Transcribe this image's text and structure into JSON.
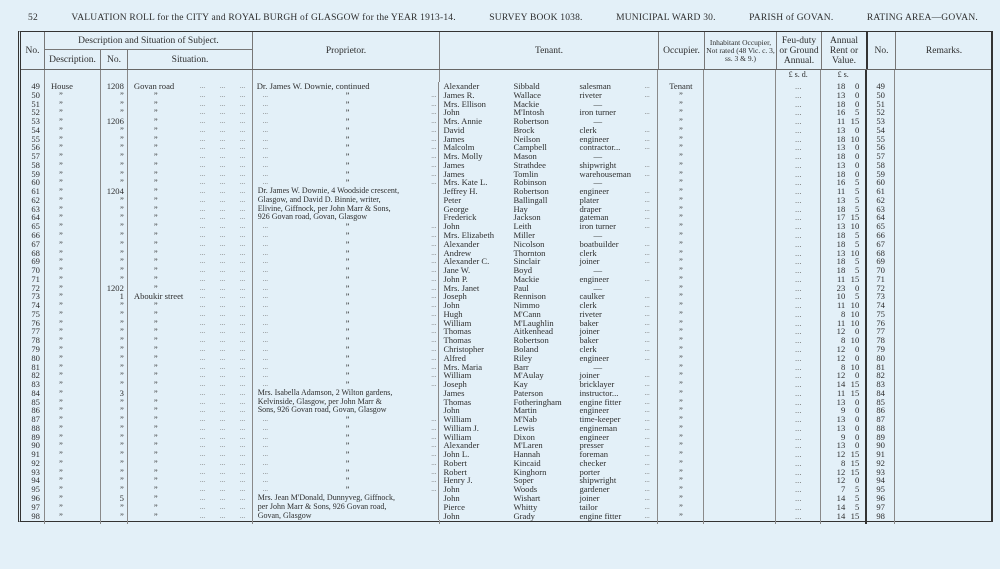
{
  "header": {
    "page_number": "52",
    "title": "VALUATION ROLL for the CITY and ROYAL BURGH of GLASGOW for the YEAR 1913-14.",
    "survey_book": "SURVEY BOOK 1038.",
    "ward": "MUNICIPAL WARD 30.",
    "parish": "PARISH of GOVAN.",
    "rating_area": "RATING AREA—GOVAN."
  },
  "columns": {
    "no": "No.",
    "desc_group": "Description and Situation of Subject.",
    "description": "Description.",
    "number": "No.",
    "situation": "Situation.",
    "proprietor": "Proprietor.",
    "tenant": "Tenant.",
    "occupier": "Occupier.",
    "inhabitant": "Inhabitant Occupier, Not rated (48 Vic. c. 3, ss. 3 & 9.)",
    "feu": "Feu-duty or Ground Annual.",
    "rent": "Annual Rent or Value.",
    "no2": "No.",
    "remarks": "Remarks.",
    "feu_units": "£  s.  d.",
    "rent_units": "£    s."
  },
  "ditto": "”",
  "rows": [
    {
      "no": "49",
      "desc": "House",
      "num": "1208",
      "sit": "Govan road",
      "prop": "Dr. James W. Downie, continued",
      "first": "Alexander",
      "last": "Sibbald",
      "occ": "salesman",
      "occupier": "Tenant",
      "feu": "...",
      "rl": "18",
      "rs": "0"
    },
    {
      "no": "50",
      "desc": "”",
      "num": "”",
      "sit": "”",
      "prop": "”",
      "first": "James R.",
      "last": "Wallace",
      "occ": "riveter",
      "occupier": "”",
      "feu": "...",
      "rl": "13",
      "rs": "0"
    },
    {
      "no": "51",
      "desc": "”",
      "num": "”",
      "sit": "”",
      "prop": "”",
      "first": "Mrs. Ellison",
      "last": "Mackie",
      "occ": "—",
      "occupier": "”",
      "feu": "...",
      "rl": "18",
      "rs": "0"
    },
    {
      "no": "52",
      "desc": "”",
      "num": "”",
      "sit": "”",
      "prop": "”",
      "first": "John",
      "last": "M'Intosh",
      "occ": "iron turner",
      "occupier": "”",
      "feu": "...",
      "rl": "16",
      "rs": "5"
    },
    {
      "no": "53",
      "desc": "”",
      "num": "1206",
      "sit": "”",
      "prop": "”",
      "first": "Mrs. Annie",
      "last": "Robertson",
      "occ": "—",
      "occupier": "”",
      "feu": "...",
      "rl": "11",
      "rs": "15"
    },
    {
      "no": "54",
      "desc": "”",
      "num": "”",
      "sit": "”",
      "prop": "”",
      "first": "David",
      "last": "Brock",
      "occ": "clerk",
      "occupier": "”",
      "feu": "...",
      "rl": "13",
      "rs": "0"
    },
    {
      "no": "55",
      "desc": "”",
      "num": "”",
      "sit": "”",
      "prop": "”",
      "first": "James",
      "last": "Neilson",
      "occ": "engineer",
      "occupier": "”",
      "feu": "...",
      "rl": "18",
      "rs": "10"
    },
    {
      "no": "56",
      "desc": "”",
      "num": "”",
      "sit": "”",
      "prop": "”",
      "first": "Malcolm",
      "last": "Campbell",
      "occ": "contractor...",
      "occupier": "”",
      "feu": "...",
      "rl": "13",
      "rs": "0"
    },
    {
      "no": "57",
      "desc": "”",
      "num": "”",
      "sit": "”",
      "prop": "”",
      "first": "Mrs. Molly",
      "last": "Mason",
      "occ": "—",
      "occupier": "”",
      "feu": "...",
      "rl": "18",
      "rs": "0"
    },
    {
      "no": "58",
      "desc": "”",
      "num": "”",
      "sit": "”",
      "prop": "”",
      "first": "James",
      "last": "Strathdee",
      "occ": "shipwright",
      "occupier": "”",
      "feu": "...",
      "rl": "13",
      "rs": "0"
    },
    {
      "no": "59",
      "desc": "”",
      "num": "”",
      "sit": "”",
      "prop": "”",
      "first": "James",
      "last": "Tomlin",
      "occ": "warehouseman",
      "occupier": "”",
      "feu": "...",
      "rl": "18",
      "rs": "0"
    },
    {
      "no": "60",
      "desc": "”",
      "num": "”",
      "sit": "”",
      "prop": "”",
      "first": "Mrs. Kate L.",
      "last": "Robinson",
      "occ": "—",
      "occupier": "”",
      "feu": "...",
      "rl": "16",
      "rs": "5"
    },
    {
      "no": "61",
      "desc": "”",
      "num": "1204",
      "sit": "”",
      "prop": "Dr. James W. Downie, 4 Woodside crescent,",
      "first": "Jeffrey H.",
      "last": "Robertson",
      "occ": "engineer",
      "occupier": "”",
      "feu": "...",
      "rl": "11",
      "rs": "5"
    },
    {
      "no": "62",
      "desc": "”",
      "num": "”",
      "sit": "”",
      "prop": "Glasgow, and David D. Binnie, writer,",
      "first": "Peter",
      "last": "Ballingall",
      "occ": "plater",
      "occupier": "”",
      "feu": "...",
      "rl": "13",
      "rs": "5"
    },
    {
      "no": "63",
      "desc": "”",
      "num": "”",
      "sit": "”",
      "prop": "Elivine, Giffnock, per John Marr & Sons,",
      "first": "George",
      "last": "Hay",
      "occ": "draper",
      "occupier": "”",
      "feu": "...",
      "rl": "18",
      "rs": "5"
    },
    {
      "no": "64",
      "desc": "”",
      "num": "”",
      "sit": "”",
      "prop": "926 Govan road, Govan, Glasgow",
      "first": "Frederick",
      "last": "Jackson",
      "occ": "gateman",
      "occupier": "”",
      "feu": "...",
      "rl": "17",
      "rs": "15"
    },
    {
      "no": "65",
      "desc": "”",
      "num": "”",
      "sit": "”",
      "prop": "”",
      "first": "John",
      "last": "Leith",
      "occ": "iron turner",
      "occupier": "”",
      "feu": "...",
      "rl": "13",
      "rs": "10"
    },
    {
      "no": "66",
      "desc": "”",
      "num": "”",
      "sit": "”",
      "prop": "”",
      "first": "Mrs. Elizabeth",
      "last": "Miller",
      "occ": "—",
      "occupier": "”",
      "feu": "...",
      "rl": "18",
      "rs": "5"
    },
    {
      "no": "67",
      "desc": "”",
      "num": "”",
      "sit": "”",
      "prop": "”",
      "first": "Alexander",
      "last": "Nicolson",
      "occ": "boatbuilder",
      "occupier": "”",
      "feu": "...",
      "rl": "18",
      "rs": "5"
    },
    {
      "no": "68",
      "desc": "”",
      "num": "”",
      "sit": "”",
      "prop": "”",
      "first": "Andrew",
      "last": "Thornton",
      "occ": "clerk",
      "occupier": "”",
      "feu": "...",
      "rl": "13",
      "rs": "10"
    },
    {
      "no": "69",
      "desc": "”",
      "num": "”",
      "sit": "”",
      "prop": "”",
      "first": "Alexander C.",
      "last": "Sinclair",
      "occ": "joiner",
      "occupier": "”",
      "feu": "...",
      "rl": "18",
      "rs": "5"
    },
    {
      "no": "70",
      "desc": "”",
      "num": "”",
      "sit": "”",
      "prop": "”",
      "first": "Jane W.",
      "last": "Boyd",
      "occ": "—",
      "occupier": "”",
      "feu": "...",
      "rl": "18",
      "rs": "5"
    },
    {
      "no": "71",
      "desc": "”",
      "num": "”",
      "sit": "”",
      "prop": "”",
      "first": "John P.",
      "last": "Mackie",
      "occ": "engineer",
      "occupier": "”",
      "feu": "...",
      "rl": "11",
      "rs": "15"
    },
    {
      "no": "72",
      "desc": "”",
      "num": "1202",
      "sit": "”",
      "prop": "”",
      "first": "Mrs. Janet",
      "last": "Paul",
      "occ": "—",
      "occupier": "”",
      "feu": "...",
      "rl": "23",
      "rs": "0"
    },
    {
      "no": "73",
      "desc": "”",
      "num": "1",
      "sit": "Aboukir street",
      "prop": "”",
      "first": "Joseph",
      "last": "Rennison",
      "occ": "caulker",
      "occupier": "”",
      "feu": "...",
      "rl": "10",
      "rs": "5"
    },
    {
      "no": "74",
      "desc": "”",
      "num": "”",
      "sit": "”",
      "prop": "”",
      "first": "John",
      "last": "Nimmo",
      "occ": "clerk",
      "occupier": "”",
      "feu": "...",
      "rl": "11",
      "rs": "10"
    },
    {
      "no": "75",
      "desc": "”",
      "num": "”",
      "sit": "”",
      "prop": "”",
      "first": "Hugh",
      "last": "M'Cann",
      "occ": "riveter",
      "occupier": "”",
      "feu": "...",
      "rl": "8",
      "rs": "10"
    },
    {
      "no": "76",
      "desc": "”",
      "num": "”",
      "sit": "”",
      "prop": "”",
      "first": "William",
      "last": "M'Laughlin",
      "occ": "baker",
      "occupier": "”",
      "feu": "...",
      "rl": "11",
      "rs": "10"
    },
    {
      "no": "77",
      "desc": "”",
      "num": "”",
      "sit": "”",
      "prop": "”",
      "first": "Thomas",
      "last": "Aitkenhead",
      "occ": "joiner",
      "occupier": "”",
      "feu": "...",
      "rl": "12",
      "rs": "0"
    },
    {
      "no": "78",
      "desc": "”",
      "num": "”",
      "sit": "”",
      "prop": "”",
      "first": "Thomas",
      "last": "Robertson",
      "occ": "baker",
      "occupier": "”",
      "feu": "...",
      "rl": "8",
      "rs": "10"
    },
    {
      "no": "79",
      "desc": "”",
      "num": "”",
      "sit": "”",
      "prop": "”",
      "first": "Christopher",
      "last": "Boland",
      "occ": "clerk",
      "occupier": "”",
      "feu": "...",
      "rl": "12",
      "rs": "0"
    },
    {
      "no": "80",
      "desc": "”",
      "num": "”",
      "sit": "”",
      "prop": "”",
      "first": "Alfred",
      "last": "Riley",
      "occ": "engineer",
      "occupier": "”",
      "feu": "...",
      "rl": "12",
      "rs": "0"
    },
    {
      "no": "81",
      "desc": "”",
      "num": "”",
      "sit": "”",
      "prop": "”",
      "first": "Mrs. Maria",
      "last": "Barr",
      "occ": "—",
      "occupier": "”",
      "feu": "...",
      "rl": "8",
      "rs": "10"
    },
    {
      "no": "82",
      "desc": "”",
      "num": "”",
      "sit": "”",
      "prop": "”",
      "first": "William",
      "last": "M'Aulay",
      "occ": "joiner",
      "occupier": "”",
      "feu": "...",
      "rl": "12",
      "rs": "0"
    },
    {
      "no": "83",
      "desc": "”",
      "num": "”",
      "sit": "”",
      "prop": "”",
      "first": "Joseph",
      "last": "Kay",
      "occ": "bricklayer",
      "occupier": "”",
      "feu": "...",
      "rl": "14",
      "rs": "15"
    },
    {
      "no": "84",
      "desc": "”",
      "num": "3",
      "sit": "”",
      "prop": "Mrs. Isabella Adamson, 2 Wilton gardens,",
      "first": "James",
      "last": "Paterson",
      "occ": "instructor...",
      "occupier": "”",
      "feu": "...",
      "rl": "11",
      "rs": "15"
    },
    {
      "no": "85",
      "desc": "”",
      "num": "”",
      "sit": "”",
      "prop": "Kelvinside, Glasgow, per John Marr &",
      "first": "Thomas",
      "last": "Fotheringham",
      "occ": "engine fitter",
      "occupier": "”",
      "feu": "...",
      "rl": "13",
      "rs": "0"
    },
    {
      "no": "86",
      "desc": "”",
      "num": "”",
      "sit": "”",
      "prop": "Sons, 926 Govan road, Govan, Glasgow",
      "first": "John",
      "last": "Martin",
      "occ": "engineer",
      "occupier": "”",
      "feu": "...",
      "rl": "9",
      "rs": "0"
    },
    {
      "no": "87",
      "desc": "”",
      "num": "”",
      "sit": "”",
      "prop": "”",
      "first": "William",
      "last": "M'Nab",
      "occ": "time-keeper",
      "occupier": "”",
      "feu": "...",
      "rl": "13",
      "rs": "0"
    },
    {
      "no": "88",
      "desc": "”",
      "num": "”",
      "sit": "”",
      "prop": "”",
      "first": "William J.",
      "last": "Lewis",
      "occ": "engineman",
      "occupier": "”",
      "feu": "...",
      "rl": "13",
      "rs": "0"
    },
    {
      "no": "89",
      "desc": "”",
      "num": "”",
      "sit": "”",
      "prop": "”",
      "first": "William",
      "last": "Dixon",
      "occ": "engineer",
      "occupier": "”",
      "feu": "...",
      "rl": "9",
      "rs": "0"
    },
    {
      "no": "90",
      "desc": "”",
      "num": "”",
      "sit": "”",
      "prop": "”",
      "first": "Alexander",
      "last": "M'Laren",
      "occ": "presser",
      "occupier": "”",
      "feu": "...",
      "rl": "13",
      "rs": "0"
    },
    {
      "no": "91",
      "desc": "”",
      "num": "”",
      "sit": "”",
      "prop": "”",
      "first": "John L.",
      "last": "Hannah",
      "occ": "foreman",
      "occupier": "”",
      "feu": "...",
      "rl": "12",
      "rs": "15"
    },
    {
      "no": "92",
      "desc": "”",
      "num": "”",
      "sit": "”",
      "prop": "”",
      "first": "Robert",
      "last": "Kincaid",
      "occ": "checker",
      "occupier": "”",
      "feu": "...",
      "rl": "8",
      "rs": "15"
    },
    {
      "no": "93",
      "desc": "”",
      "num": "”",
      "sit": "”",
      "prop": "”",
      "first": "Robert",
      "last": "Kinghorn",
      "occ": "porter",
      "occupier": "”",
      "feu": "...",
      "rl": "12",
      "rs": "15"
    },
    {
      "no": "94",
      "desc": "”",
      "num": "”",
      "sit": "”",
      "prop": "”",
      "first": "Henry J.",
      "last": "Soper",
      "occ": "shipwright",
      "occupier": "”",
      "feu": "...",
      "rl": "12",
      "rs": "0"
    },
    {
      "no": "95",
      "desc": "”",
      "num": "”",
      "sit": "”",
      "prop": "”",
      "first": "John",
      "last": "Woods",
      "occ": "gardener",
      "occupier": "”",
      "feu": "...",
      "rl": "7",
      "rs": "5"
    },
    {
      "no": "96",
      "desc": "”",
      "num": "5",
      "sit": "”",
      "prop": "Mrs. Jean M'Donald, Dunnyveg, Giffnock,",
      "first": "John",
      "last": "Wishart",
      "occ": "joiner",
      "occupier": "”",
      "feu": "...",
      "rl": "14",
      "rs": "5"
    },
    {
      "no": "97",
      "desc": "”",
      "num": "”",
      "sit": "”",
      "prop": "per John Marr & Sons, 926 Govan road,",
      "first": "Pierce",
      "last": "Whitty",
      "occ": "tailor",
      "occupier": "”",
      "feu": "...",
      "rl": "14",
      "rs": "5"
    },
    {
      "no": "98",
      "desc": "”",
      "num": "”",
      "sit": "”",
      "prop": "Govan, Glasgow",
      "first": "John",
      "last": "Grady",
      "occ": "engine fitter",
      "occupier": "”",
      "feu": "...",
      "rl": "14",
      "rs": "15"
    }
  ]
}
